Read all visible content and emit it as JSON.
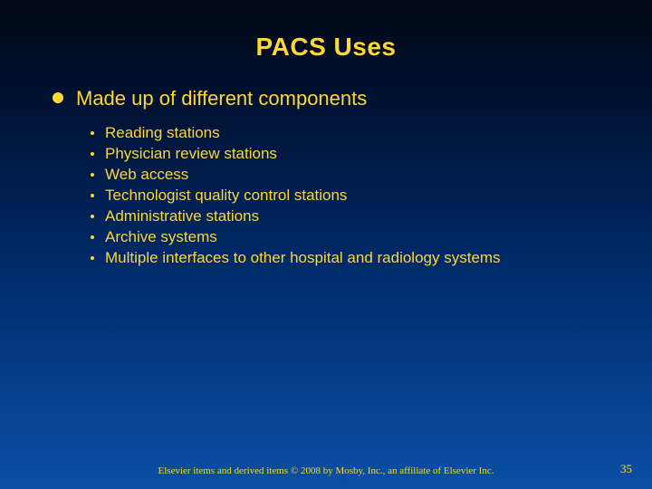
{
  "colors": {
    "title": "#ffd633",
    "body_text": "#ffd633",
    "bullet_l1": "#ffd633",
    "bullet_l2": "#ffd633",
    "footer": "#ffd633",
    "pagenum": "#ffd633"
  },
  "fonts": {
    "title_size": 28,
    "l1_size": 22,
    "l2_size": 17,
    "footer_size": 11,
    "pagenum_size": 13
  },
  "title": "PACS Uses",
  "level1": "Made up of different components",
  "level2": [
    "Reading stations",
    "Physician review stations",
    "Web access",
    "Technologist quality control stations",
    "Administrative stations",
    "Archive systems",
    "Multiple interfaces to other hospital and radiology systems"
  ],
  "footer": "Elsevier items and derived items © 2008 by Mosby, Inc., an affiliate of Elsevier Inc.",
  "page_number": "35"
}
